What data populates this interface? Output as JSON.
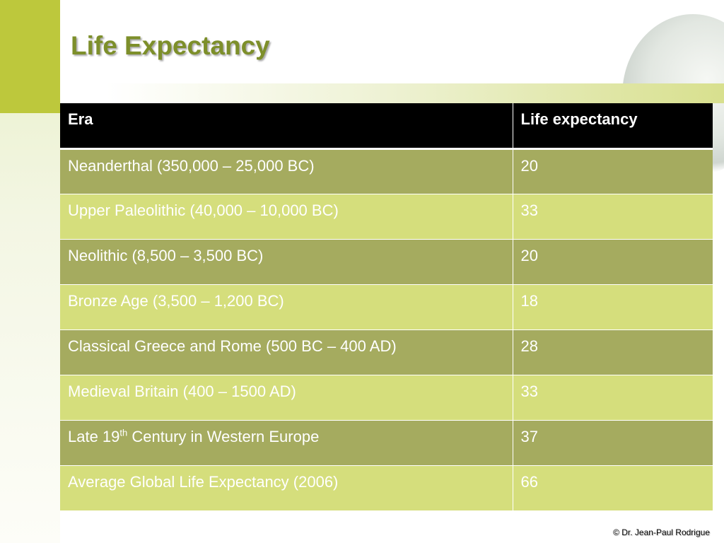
{
  "title": "Life Expectancy",
  "table": {
    "headers": [
      "Era",
      "Life expectancy"
    ],
    "rows": [
      {
        "era": "Neanderthal (350,000 – 25,000 BC)",
        "value": "20"
      },
      {
        "era": "Upper Paleolithic (40,000 – 10,000 BC)",
        "value": "33"
      },
      {
        "era": "Neolithic (8,500 – 3,500 BC)",
        "value": "20"
      },
      {
        "era": "Bronze Age (3,500 – 1,200 BC)",
        "value": "18"
      },
      {
        "era": "Classical Greece and Rome (500 BC – 400 AD)",
        "value": "28"
      },
      {
        "era": "Medieval Britain (400 – 1500 AD)",
        "value": "33"
      },
      {
        "era_prefix": "Late 19",
        "era_sup": "th",
        "era_suffix": " Century in Western Europe",
        "value": "37"
      },
      {
        "era": "Average Global Life Expectancy (2006)",
        "value": "66"
      }
    ]
  },
  "footer": {
    "copyright": "© Dr. Jean-Paul Rodrigue"
  },
  "colors": {
    "accent_green": "#bdc83c",
    "title_green": "#7d8f2a",
    "row_dark": "#a5ab5f",
    "row_light": "#d5de7c",
    "header_bg": "#000000"
  }
}
